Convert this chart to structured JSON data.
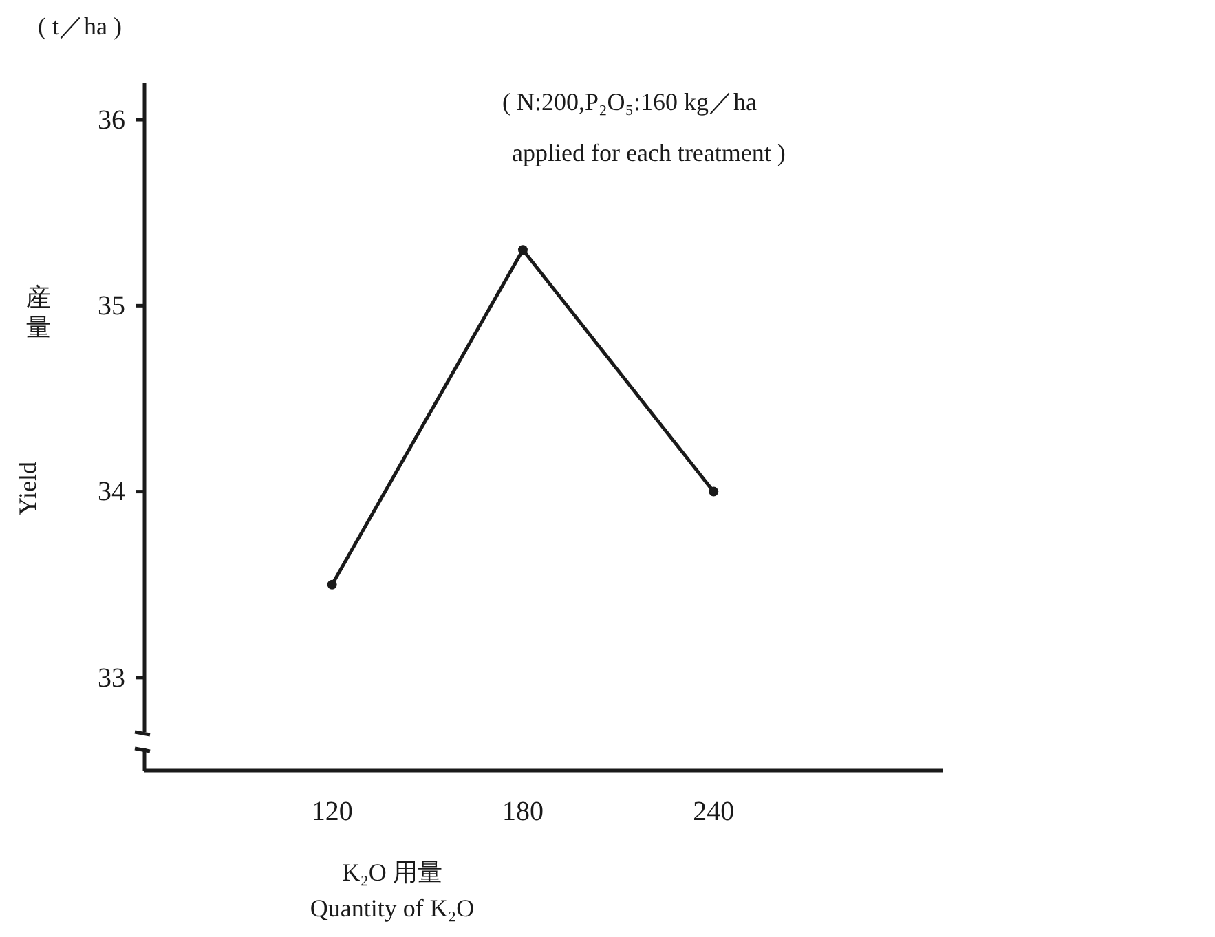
{
  "chart_data": {
    "type": "line",
    "xlabel": "Quantity of K₂O",
    "ylabel": "Yield",
    "annotations": [
      "( t／ha )",
      "産量",
      "K₂O 用量",
      "( N:200,P₂O₅:160 kg／ha",
      "applied for each treatment )"
    ],
    "x": [
      120,
      180,
      240
    ],
    "values": [
      33.5,
      35.3,
      34.0
    ],
    "color": "#1a1a1a",
    "marker": "circle",
    "line_style": "solid",
    "xlim": [
      61,
      312
    ],
    "xticks": [
      120,
      180,
      240
    ],
    "ylim": [
      32.5,
      36.2
    ],
    "yticks": [
      33,
      34,
      35,
      36
    ],
    "grid": false
  }
}
